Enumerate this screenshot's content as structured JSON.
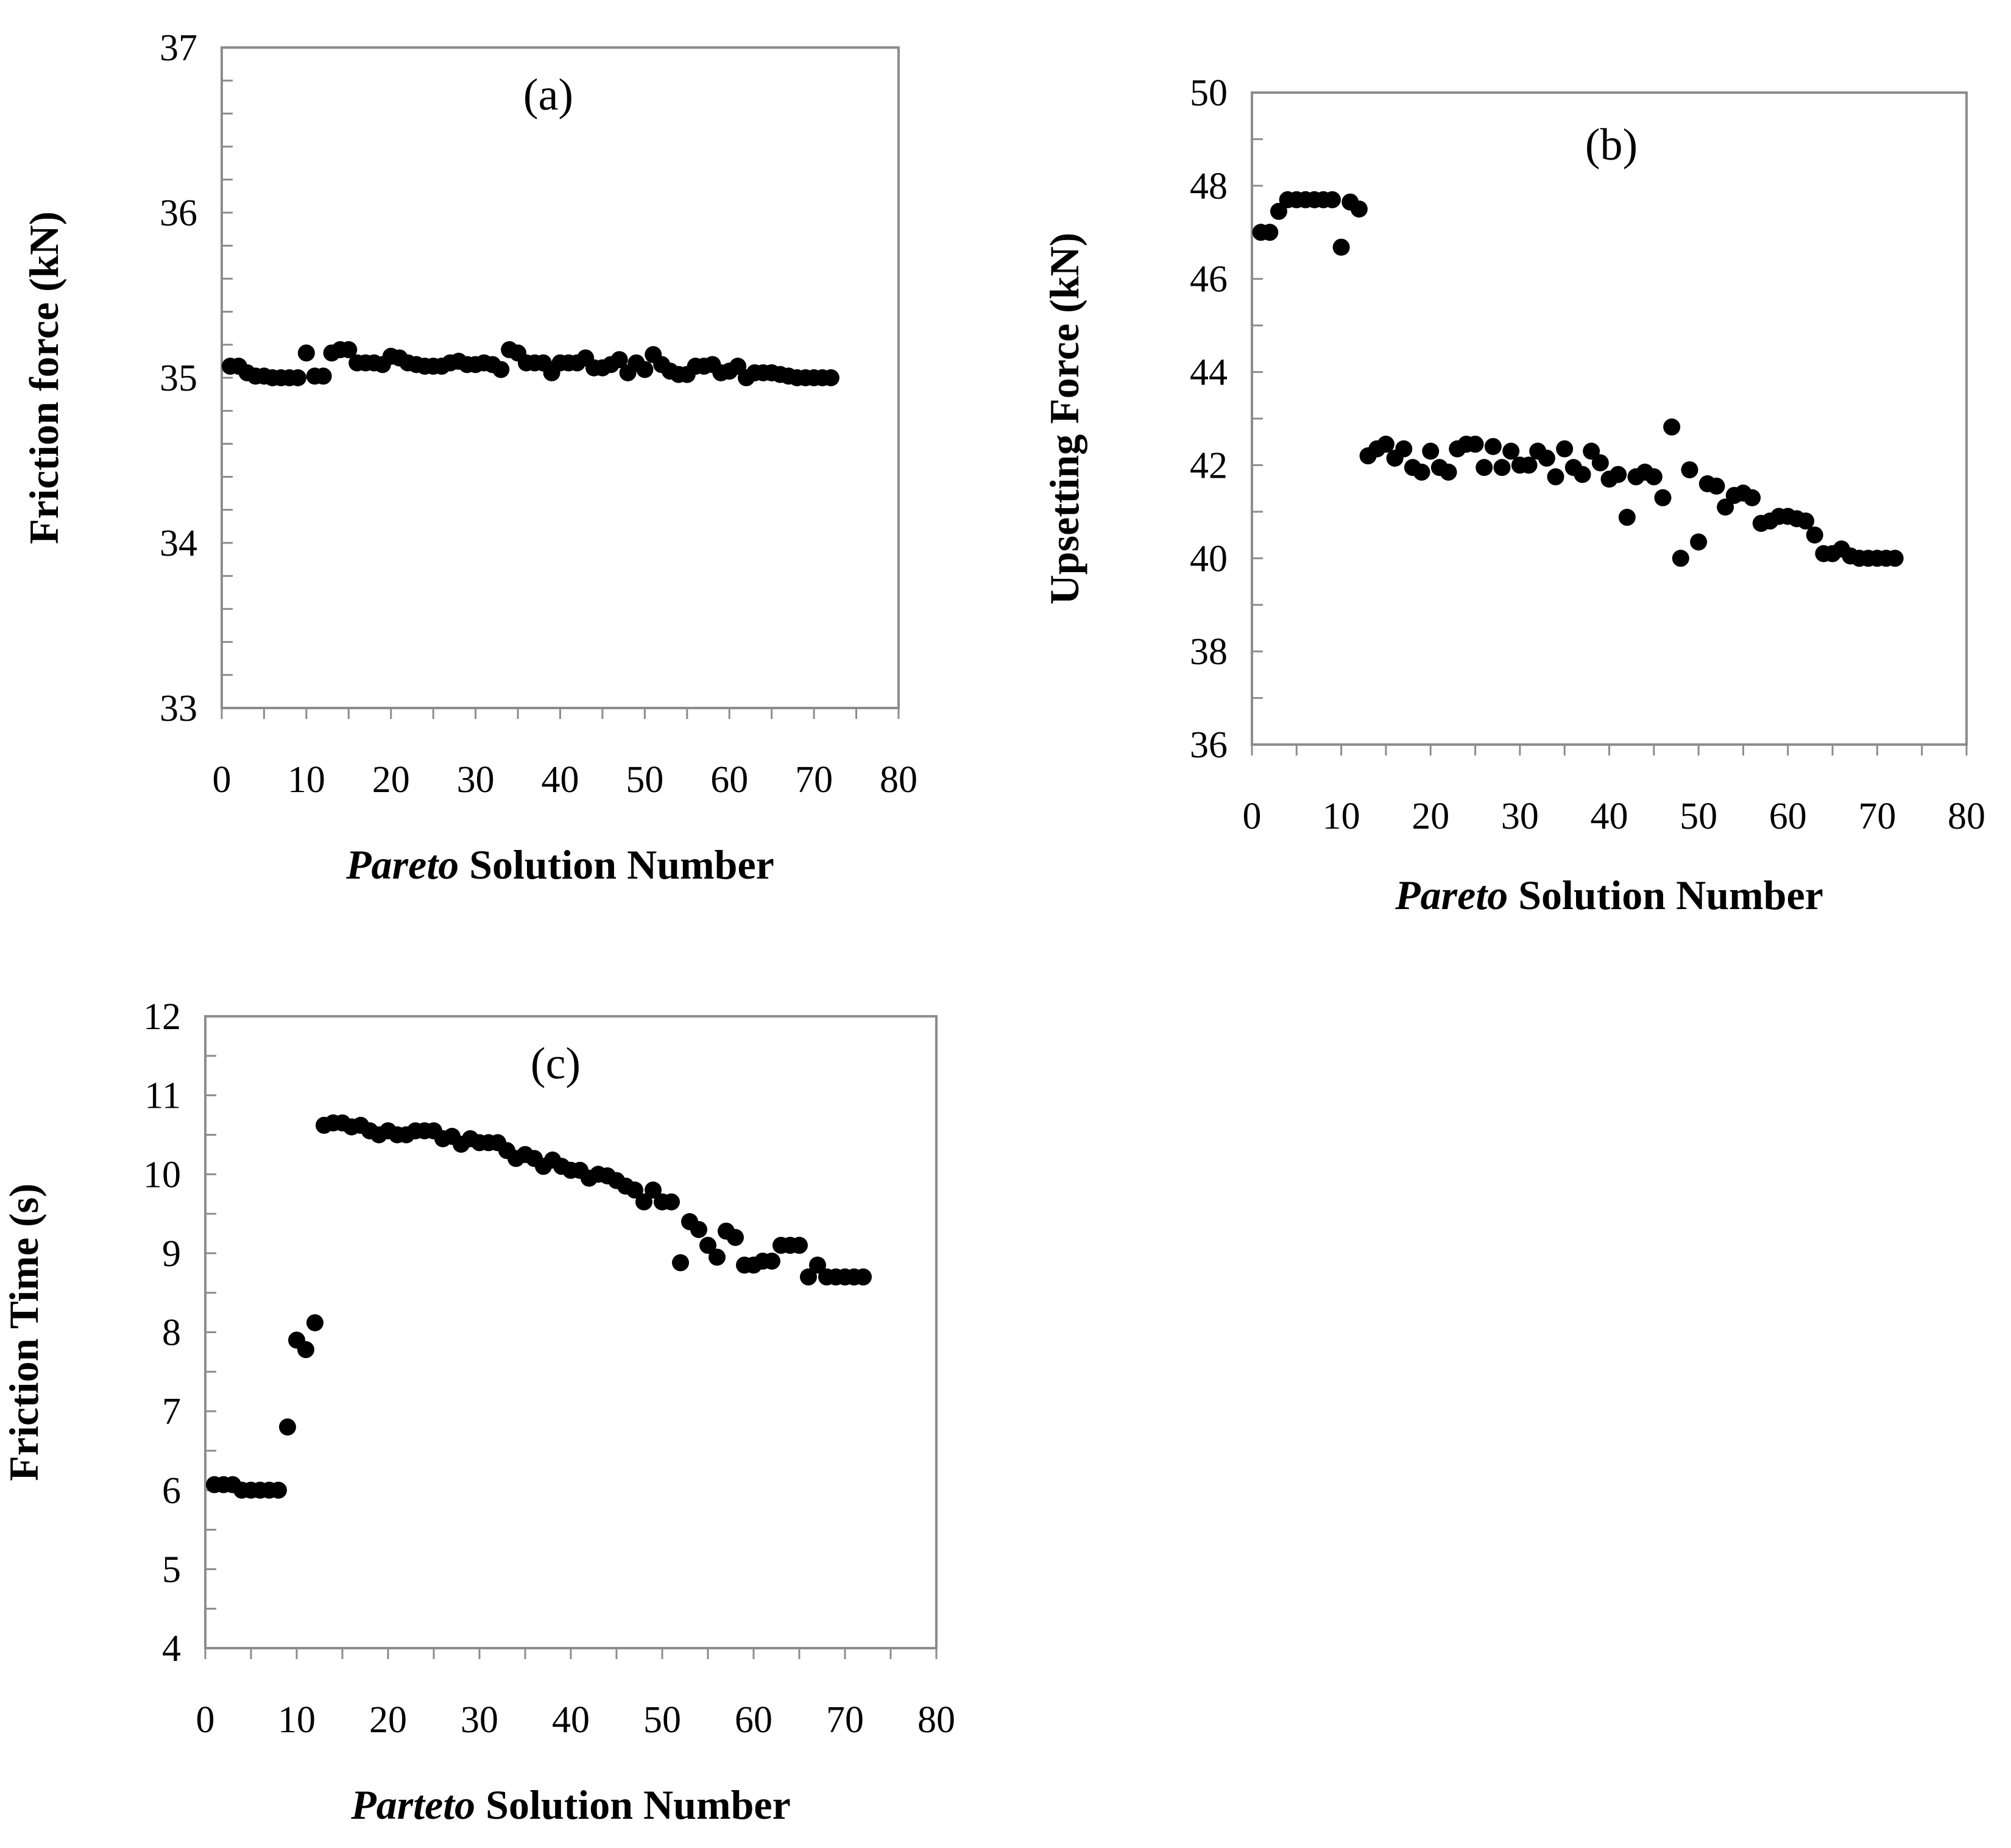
{
  "chart_data": [
    {
      "type": "scatter",
      "title": "(a)",
      "xlabel_italic": "Pareto",
      "xlabel_rest": " Solution Number",
      "ylabel": "Friction force (kN)",
      "xlim": [
        0,
        80
      ],
      "ylim": [
        33,
        37
      ],
      "xticks": [
        0,
        10,
        20,
        30,
        40,
        50,
        60,
        70,
        80
      ],
      "yticks": [
        33,
        34,
        35,
        36,
        37
      ],
      "y_minor_step": 0.2,
      "x_minor_step": 5,
      "series": [
        {
          "name": "Friction force",
          "x": [
            1,
            2,
            3,
            4,
            5,
            6,
            7,
            8,
            9,
            10,
            11,
            12,
            13,
            14,
            15,
            16,
            17,
            18,
            19,
            20,
            21,
            22,
            23,
            24,
            25,
            26,
            27,
            28,
            29,
            30,
            31,
            32,
            33,
            34,
            35,
            36,
            37,
            38,
            39,
            40,
            41,
            42,
            43,
            44,
            45,
            46,
            47,
            48,
            49,
            50,
            51,
            52,
            53,
            54,
            55,
            56,
            57,
            58,
            59,
            60,
            61,
            62,
            63,
            64,
            65,
            66,
            67,
            68,
            69,
            70,
            71,
            72
          ],
          "y": [
            35.07,
            35.07,
            35.03,
            35.01,
            35.01,
            35.0,
            35.0,
            35.0,
            35.0,
            35.15,
            35.01,
            35.01,
            35.15,
            35.17,
            35.17,
            35.09,
            35.09,
            35.09,
            35.08,
            35.13,
            35.12,
            35.09,
            35.08,
            35.07,
            35.07,
            35.07,
            35.09,
            35.1,
            35.08,
            35.08,
            35.09,
            35.08,
            35.05,
            35.17,
            35.15,
            35.09,
            35.09,
            35.09,
            35.03,
            35.09,
            35.09,
            35.09,
            35.12,
            35.06,
            35.06,
            35.08,
            35.11,
            35.03,
            35.09,
            35.05,
            35.14,
            35.08,
            35.04,
            35.02,
            35.02,
            35.07,
            35.07,
            35.08,
            35.03,
            35.04,
            35.07,
            35.0,
            35.03,
            35.03,
            35.03,
            35.02,
            35.01,
            35.0,
            35.0,
            35.0,
            35.0,
            35.0
          ]
        }
      ]
    },
    {
      "type": "scatter",
      "title": "(b)",
      "xlabel_italic": "Pareto",
      "xlabel_rest": " Solution Number",
      "ylabel": "Upsetting Force (kN)",
      "xlim": [
        0,
        80
      ],
      "ylim": [
        36,
        50
      ],
      "xticks": [
        0,
        10,
        20,
        30,
        40,
        50,
        60,
        70,
        80
      ],
      "yticks": [
        36,
        38,
        40,
        42,
        44,
        46,
        48,
        50
      ],
      "y_minor_step": 1,
      "x_minor_step": 5,
      "series": [
        {
          "name": "Upsetting force",
          "x": [
            1,
            2,
            3,
            4,
            5,
            6,
            7,
            8,
            9,
            10,
            11,
            12,
            13,
            14,
            15,
            16,
            17,
            18,
            19,
            20,
            21,
            22,
            23,
            24,
            25,
            26,
            27,
            28,
            29,
            30,
            31,
            32,
            33,
            34,
            35,
            36,
            37,
            38,
            39,
            40,
            41,
            42,
            43,
            44,
            45,
            46,
            47,
            48,
            49,
            50,
            51,
            52,
            53,
            54,
            55,
            56,
            57,
            58,
            59,
            60,
            61,
            62,
            63,
            64,
            65,
            66,
            67,
            68,
            69,
            70,
            71,
            72
          ],
          "y": [
            47.0,
            47.0,
            47.45,
            47.7,
            47.7,
            47.7,
            47.7,
            47.7,
            47.7,
            46.68,
            47.65,
            47.5,
            42.2,
            42.35,
            42.45,
            42.15,
            42.35,
            41.95,
            41.85,
            42.3,
            41.95,
            41.85,
            42.35,
            42.45,
            42.45,
            41.95,
            42.4,
            41.95,
            42.3,
            42.0,
            42.0,
            42.3,
            42.15,
            41.75,
            42.35,
            41.95,
            41.8,
            42.3,
            42.05,
            41.7,
            41.8,
            40.88,
            41.75,
            41.85,
            41.75,
            41.3,
            42.82,
            40.0,
            41.9,
            40.35,
            41.6,
            41.55,
            41.1,
            41.35,
            41.4,
            41.3,
            40.75,
            40.8,
            40.9,
            40.9,
            40.85,
            40.8,
            40.5,
            40.1,
            40.1,
            40.2,
            40.05,
            40.0,
            40.0,
            40.0,
            40.0,
            40.0
          ]
        }
      ]
    },
    {
      "type": "scatter",
      "title": "(c)",
      "xlabel_italic": "Parteto",
      "xlabel_rest": " Solution Number",
      "ylabel": "Friction Time (s)",
      "xlim": [
        0,
        80
      ],
      "ylim": [
        4,
        12
      ],
      "xticks": [
        0,
        10,
        20,
        30,
        40,
        50,
        60,
        70,
        80
      ],
      "yticks": [
        4,
        5,
        6,
        7,
        8,
        9,
        10,
        11,
        12
      ],
      "y_minor_step": 0.5,
      "x_minor_step": 5,
      "series": [
        {
          "name": "Friction time",
          "x": [
            1,
            2,
            3,
            4,
            5,
            6,
            7,
            8,
            9,
            10,
            11,
            12,
            13,
            14,
            15,
            16,
            17,
            18,
            19,
            20,
            21,
            22,
            23,
            24,
            25,
            26,
            27,
            28,
            29,
            30,
            31,
            32,
            33,
            34,
            35,
            36,
            37,
            38,
            39,
            40,
            41,
            42,
            43,
            44,
            45,
            46,
            47,
            48,
            49,
            50,
            51,
            52,
            53,
            54,
            55,
            56,
            57,
            58,
            59,
            60,
            61,
            62,
            63,
            64,
            65,
            66,
            67,
            68,
            69,
            70,
            71,
            72
          ],
          "y": [
            6.07,
            6.07,
            6.07,
            6.0,
            6.0,
            6.0,
            6.0,
            6.0,
            6.8,
            7.9,
            7.78,
            8.12,
            10.62,
            10.65,
            10.65,
            10.6,
            10.62,
            10.55,
            10.5,
            10.55,
            10.5,
            10.5,
            10.55,
            10.55,
            10.55,
            10.45,
            10.48,
            10.38,
            10.45,
            10.4,
            10.4,
            10.4,
            10.3,
            10.2,
            10.25,
            10.2,
            10.1,
            10.18,
            10.1,
            10.05,
            10.05,
            9.95,
            10.0,
            9.98,
            9.92,
            9.85,
            9.8,
            9.65,
            9.8,
            9.65,
            9.65,
            8.88,
            9.4,
            9.3,
            9.1,
            8.95,
            9.28,
            9.2,
            8.85,
            8.85,
            8.9,
            8.9,
            9.1,
            9.1,
            9.1,
            8.7,
            8.85,
            8.7,
            8.7,
            8.7,
            8.7,
            8.7
          ]
        }
      ]
    }
  ]
}
